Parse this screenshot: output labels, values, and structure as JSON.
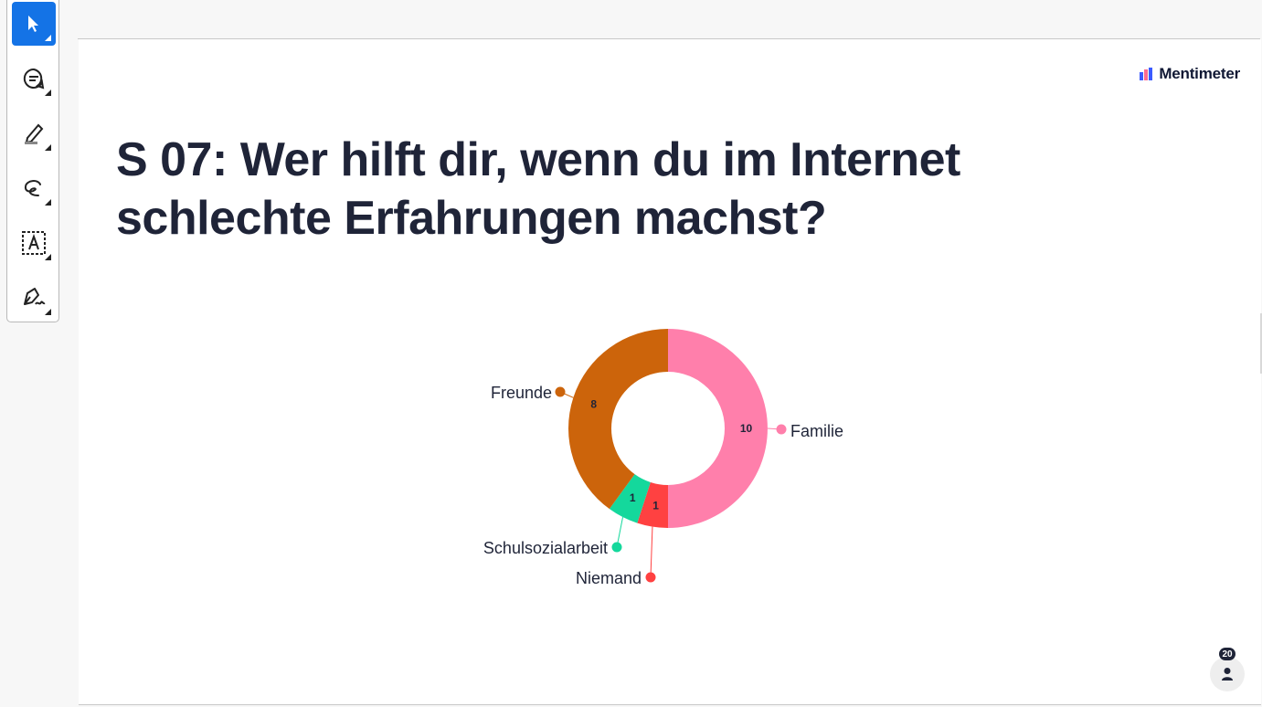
{
  "toolbar": {
    "tools": [
      {
        "name": "select-tool",
        "icon": "pointer-icon",
        "active": true
      },
      {
        "name": "comment-tool",
        "icon": "comment-icon",
        "active": false
      },
      {
        "name": "highlight-tool",
        "icon": "highlighter-icon",
        "active": false
      },
      {
        "name": "draw-tool",
        "icon": "freehand-icon",
        "active": false
      },
      {
        "name": "text-box-tool",
        "icon": "text-box-icon",
        "active": false
      },
      {
        "name": "sign-tool",
        "icon": "signature-icon",
        "active": false
      }
    ],
    "accent": "#1473e6"
  },
  "slide": {
    "logo_text": "Mentimeter",
    "title": "S 07: Wer hilft dir, wenn du im Internet schlechte Erfahrungen machst?",
    "participants": "20"
  },
  "chart_data": {
    "type": "pie",
    "donut": true,
    "categories": [
      "Familie",
      "Niemand",
      "Schulsozialarbeit",
      "Freunde"
    ],
    "values": [
      10,
      1,
      1,
      8
    ],
    "colors": [
      "#ff7fab",
      "#ff4141",
      "#14d89c",
      "#cc640b"
    ],
    "value_labels": [
      "10",
      "1",
      "1",
      "8"
    ]
  }
}
